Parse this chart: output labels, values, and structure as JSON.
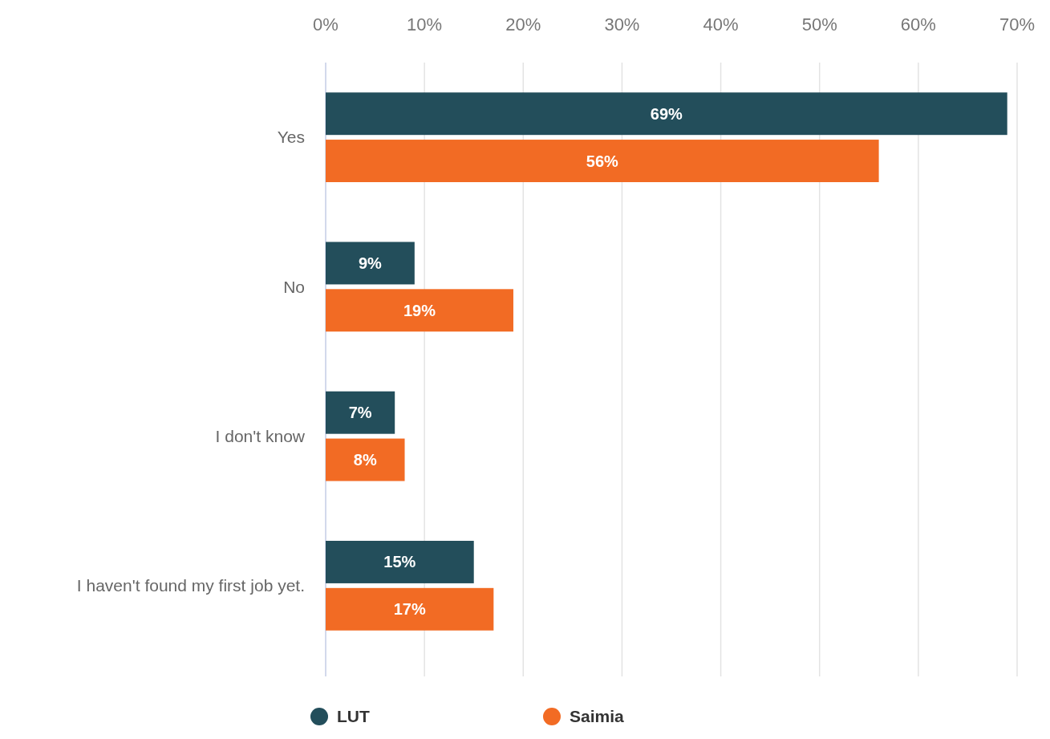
{
  "chart_data": {
    "type": "bar",
    "orientation": "horizontal",
    "categories": [
      "Yes",
      "No",
      "I don't know",
      "I haven't found my first job yet."
    ],
    "series": [
      {
        "name": "LUT",
        "color": "#234e5b",
        "values": [
          69,
          9,
          7,
          15
        ],
        "value_labels": [
          "69%",
          "9%",
          "7%",
          "15%"
        ]
      },
      {
        "name": "Saimia",
        "color": "#f26b24",
        "values": [
          56,
          19,
          8,
          17
        ],
        "value_labels": [
          "56%",
          "19%",
          "8%",
          "17%"
        ]
      }
    ],
    "xlim": [
      0,
      70
    ],
    "xticks": [
      {
        "value": 0,
        "label": "0%"
      },
      {
        "value": 10,
        "label": "10%"
      },
      {
        "value": 20,
        "label": "20%"
      },
      {
        "value": 30,
        "label": "30%"
      },
      {
        "value": 40,
        "label": "40%"
      },
      {
        "value": 50,
        "label": "50%"
      },
      {
        "value": 60,
        "label": "60%"
      },
      {
        "value": 70,
        "label": "70%"
      }
    ],
    "grid": "x",
    "legend": "bottom",
    "marker": "circle"
  }
}
